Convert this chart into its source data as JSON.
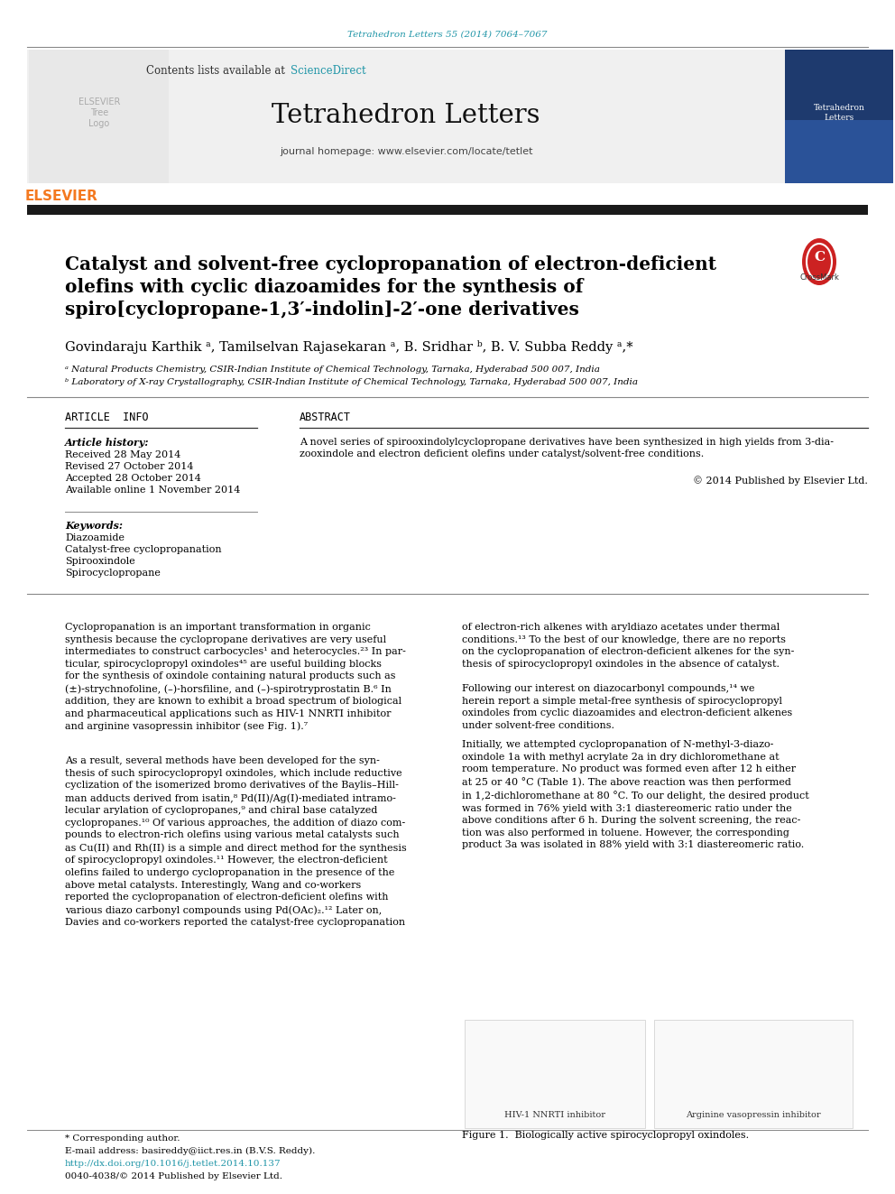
{
  "page_bg": "#ffffff",
  "header_link_text": "Tetrahedron Letters 55 (2014) 7064–7067",
  "contents_text": "Contents lists available at ",
  "sciencedirect_text": "ScienceDirect",
  "journal_name": "Tetrahedron Letters",
  "journal_homepage": "journal homepage: www.elsevier.com/locate/tetlet",
  "title_line1": "Catalyst and solvent-free cyclopropanation of electron-deficient",
  "title_line2": "olefins with cyclic diazoamides for the synthesis of",
  "title_line3": "spiro[cyclopropane-1,3′-indolin]-2′-one derivatives",
  "authors": "Govindaraju Karthik ᵃ, Tamilselvan Rajasekaran ᵃ, B. Sridhar ᵇ, B. V. Subba Reddy ᵃ,*",
  "affil_a": "ᵃ Natural Products Chemistry, CSIR-Indian Institute of Chemical Technology, Tarnaka, Hyderabad 500 007, India",
  "affil_b": "ᵇ Laboratory of X-ray Crystallography, CSIR-Indian Institute of Chemical Technology, Tarnaka, Hyderabad 500 007, India",
  "article_info_title": "ARTICLE  INFO",
  "article_history_label": "Article history:",
  "received": "Received 28 May 2014",
  "revised": "Revised 27 October 2014",
  "accepted": "Accepted 28 October 2014",
  "available": "Available online 1 November 2014",
  "keywords_label": "Keywords:",
  "keyword1": "Diazoamide",
  "keyword2": "Catalyst-free cyclopropanation",
  "keyword3": "Spirooxindole",
  "keyword4": "Spirocyclopropane",
  "abstract_title": "ABSTRACT",
  "abstract_line1": "A novel series of spirooxindolylcyclopropane derivatives have been synthesized in high yields from 3-dia-",
  "abstract_line2": "zooxindole and electron deficient olefins under catalyst/solvent-free conditions.",
  "copyright": "© 2014 Published by Elsevier Ltd.",
  "body_col1_p1": "Cyclopropanation is an important transformation in organic\nsynthesis because the cyclopropane derivatives are very useful\nintermediates to construct carbocycles¹ and heterocycles.²³ In par-\nticular, spirocyclopropyl oxindoles⁴⁵ are useful building blocks\nfor the synthesis of oxindole containing natural products such as\n(±)-strychnofoline, (–)-horsfiline, and (–)-spirotryprostatin B.⁶ In\naddition, they are known to exhibit a broad spectrum of biological\nand pharmaceutical applications such as HIV-1 NNRTI inhibitor\nand arginine vasopressin inhibitor (see Fig. 1).⁷",
  "body_col1_p2": "As a result, several methods have been developed for the syn-\nthesis of such spirocyclopropyl oxindoles, which include reductive\ncyclization of the isomerized bromo derivatives of the Baylis–Hill-\nman adducts derived from isatin,⁸ Pd(II)/Ag(I)-mediated intramo-\nlecular arylation of cyclopropanes,⁹ and chiral base catalyzed\ncyclopropanes.¹⁰ Of various approaches, the addition of diazo com-\npounds to electron-rich olefins using various metal catalysts such\nas Cu(II) and Rh(II) is a simple and direct method for the synthesis\nof spirocyclopropyl oxindoles.¹¹ However, the electron-deficient\nolefins failed to undergo cyclopropanation in the presence of the\nabove metal catalysts. Interestingly, Wang and co-workers\nreported the cyclopropanation of electron-deficient olefins with\nvarious diazo carbonyl compounds using Pd(OAc)₂.¹² Later on,\nDavies and co-workers reported the catalyst-free cyclopropanation",
  "body_col2_p1": "of electron-rich alkenes with aryldiazo acetates under thermal\nconditions.¹³ To the best of our knowledge, there are no reports\non the cyclopropanation of electron-deficient alkenes for the syn-\nthesis of spirocyclopropyl oxindoles in the absence of catalyst.",
  "body_col2_p2": "Following our interest on diazocarbonyl compounds,¹⁴ we\nherein report a simple metal-free synthesis of spirocyclopropyl\noxindoles from cyclic diazoamides and electron-deficient alkenes\nunder solvent-free conditions.",
  "body_col2_p3": "Initially, we attempted cyclopropanation of N-methyl-3-diazo-\noxindole 1a with methyl acrylate 2a in dry dichloromethane at\nroom temperature. No product was formed even after 12 h either\nat 25 or 40 °C (Table 1). The above reaction was then performed\nin 1,2-dichloromethane at 80 °C. To our delight, the desired product\nwas formed in 76% yield with 3:1 diastereomeric ratio under the\nabove conditions after 6 h. During the solvent screening, the reac-\ntion was also performed in toluene. However, the corresponding\nproduct 3a was isolated in 88% yield with 3:1 diastereomeric ratio.",
  "footnote_corresponding": "* Corresponding author.",
  "footnote_email": "E-mail address: basireddy@iict.res.in (B.V.S. Reddy).",
  "doi_text": "http://dx.doi.org/10.1016/j.tetlet.2014.10.137",
  "issn_text": "0040-4038/© 2014 Published by Elsevier Ltd.",
  "figure_caption": "Figure 1.  Biologically active spirocyclopropyl oxindoles.",
  "fig1_label_left": "HIV-1 NNRTI inhibitor",
  "fig1_label_right": "Arginine vasopressin inhibitor",
  "header_gray": "#f0f0f0",
  "link_blue": "#2196A8",
  "elsevier_orange": "#F47920",
  "thick_bar_color": "#1a1a1a"
}
